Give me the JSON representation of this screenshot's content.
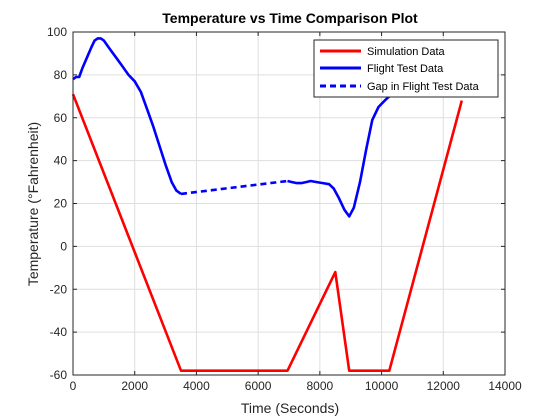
{
  "chart_data": {
    "type": "line",
    "title": "Temperature vs Time Comparison Plot",
    "xlabel": "Time (Seconds)",
    "ylabel": "Temperature (°Fahrenheit)",
    "xlim": [
      0,
      14000
    ],
    "ylim": [
      -60,
      100
    ],
    "x_ticks": [
      0,
      2000,
      4000,
      6000,
      8000,
      10000,
      12000,
      14000
    ],
    "y_ticks": [
      -60,
      -40,
      -20,
      0,
      20,
      40,
      60,
      80,
      100
    ],
    "grid": true,
    "legend_position": "top-right",
    "series": [
      {
        "name": "Simulation Data",
        "color": "#ff0000",
        "style": "solid",
        "x": [
          0,
          3500,
          6950,
          8500,
          8950,
          10250,
          12600
        ],
        "y": [
          71,
          -58,
          -58,
          -12,
          -58,
          -58,
          68
        ]
      },
      {
        "name": "Flight Test Data",
        "color": "#0000ff",
        "style": "solid",
        "segments": [
          {
            "x": [
              0,
              100,
              200,
              300,
              450,
              600,
              700,
              800,
              900,
              1000,
              1200,
              1400,
              1600,
              1800,
              2000,
              2200,
              2400,
              2600,
              2800,
              3000,
              3200,
              3350,
              3500
            ],
            "y": [
              78,
              79,
              79,
              83,
              88,
              93,
              96,
              97,
              97,
              96,
              92,
              88,
              84,
              80,
              77,
              72,
              64,
              56,
              47,
              38,
              30,
              26,
              24.5
            ]
          },
          {
            "x": [
              6950,
              7100,
              7250,
              7400,
              7550,
              7700,
              7900,
              8100,
              8300,
              8450,
              8600,
              8800,
              8950,
              9100,
              9300,
              9500,
              9700,
              9900,
              10100,
              10250
            ],
            "y": [
              30.5,
              30,
              29.5,
              29.5,
              30,
              30.5,
              30,
              29.5,
              29,
              27,
              23,
              17,
              14,
              18,
              30,
              45,
              59,
              65,
              68,
              70
            ]
          }
        ]
      },
      {
        "name": "Gap in Flight Test Data",
        "color": "#0000ff",
        "style": "dashed",
        "x": [
          3500,
          6950
        ],
        "y": [
          24.5,
          30.5
        ]
      }
    ]
  }
}
